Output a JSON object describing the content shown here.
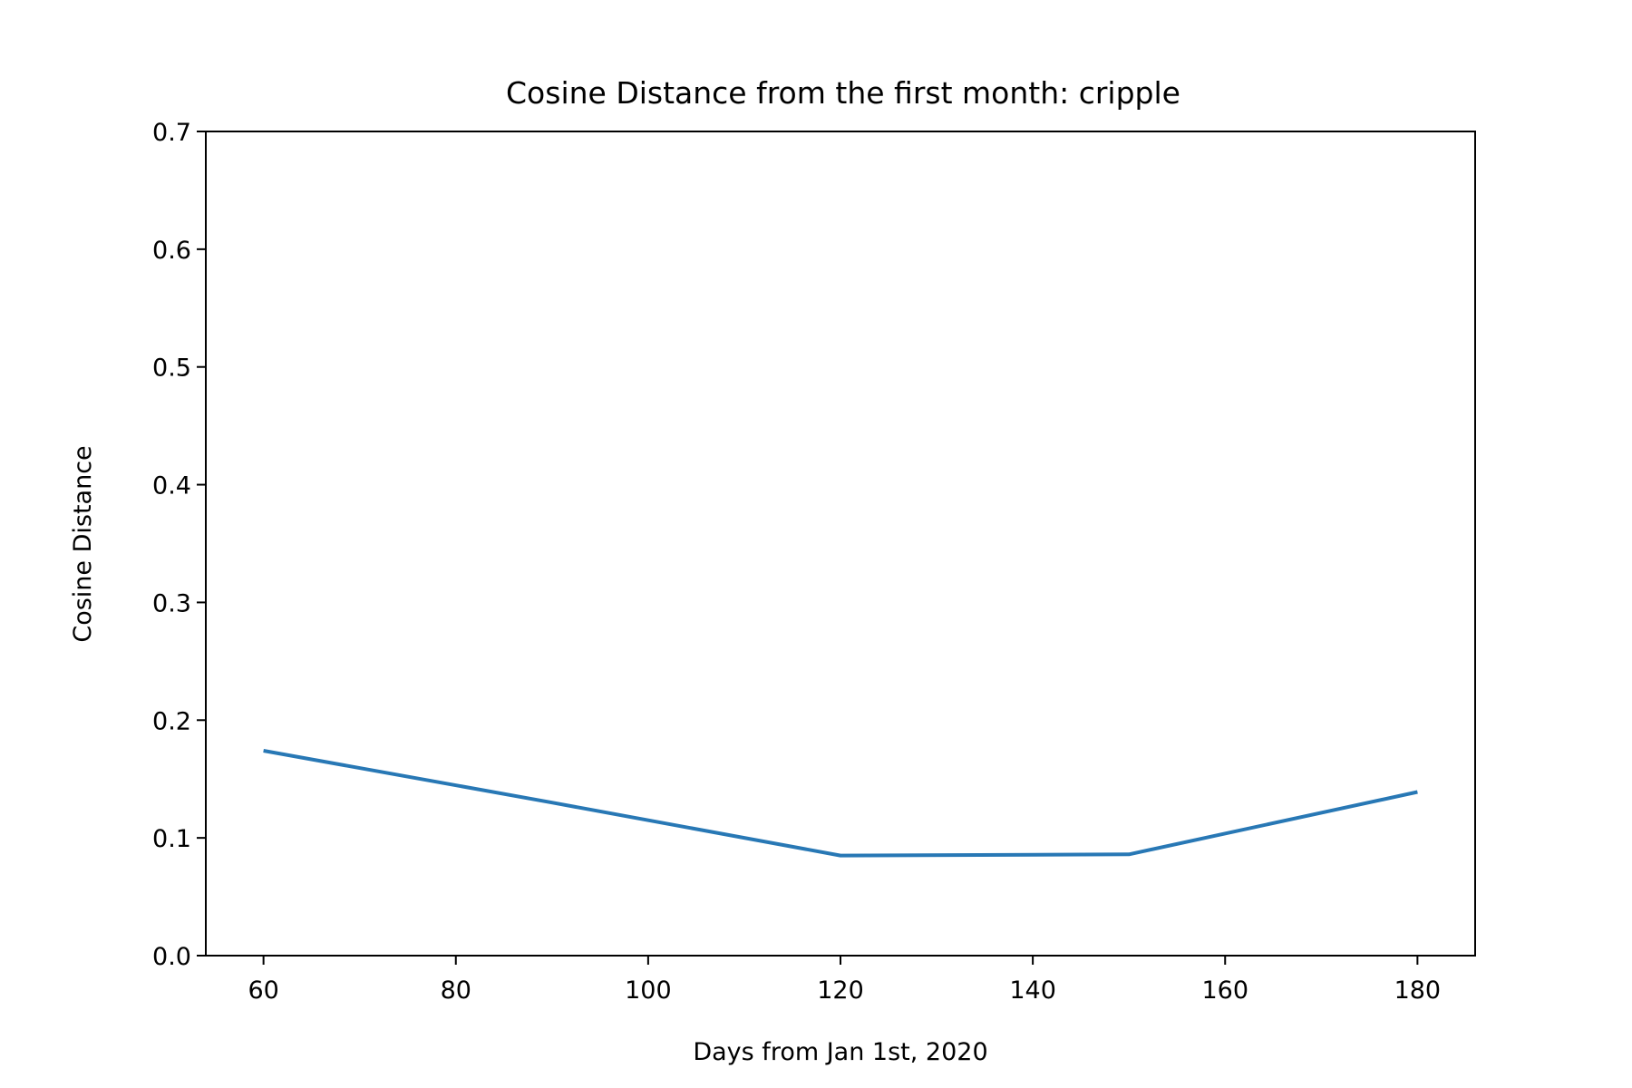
{
  "chart_data": {
    "type": "line",
    "title": "Cosine Distance from the first month: cripple",
    "xlabel": "Days from Jan 1st, 2020",
    "ylabel": "Cosine Distance",
    "xlim": [
      54,
      186
    ],
    "ylim": [
      0.0,
      0.7
    ],
    "xticks": [
      60,
      80,
      100,
      120,
      140,
      160,
      180
    ],
    "xtick_labels": [
      "60",
      "80",
      "100",
      "120",
      "140",
      "160",
      "180"
    ],
    "yticks": [
      0.0,
      0.1,
      0.2,
      0.3,
      0.4,
      0.5,
      0.6,
      0.7
    ],
    "ytick_labels": [
      "0.0",
      "0.1",
      "0.2",
      "0.3",
      "0.4",
      "0.5",
      "0.6",
      "0.7"
    ],
    "grid": false,
    "series": [
      {
        "color": "#2878b5",
        "x": [
          60,
          90,
          120,
          150,
          180
        ],
        "y": [
          0.174,
          0.13,
          0.085,
          0.086,
          0.139
        ]
      }
    ]
  }
}
